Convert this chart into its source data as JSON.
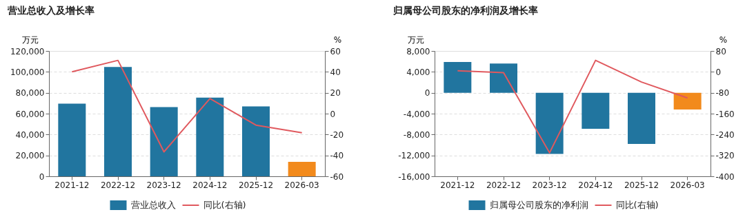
{
  "chart_data": [
    {
      "type": "bar",
      "title": "营业总收入及增长率",
      "ylabel": "万元",
      "y2label": "%",
      "categories": [
        "2021-12",
        "2022-12",
        "2023-12",
        "2024-12",
        "2025-12",
        "2026-03"
      ],
      "series": [
        {
          "name": "营业总收入",
          "type": "bar",
          "color": "#21759f",
          "colors": [
            "#21759f",
            "#21759f",
            "#21759f",
            "#21759f",
            "#21759f",
            "#f28a1c"
          ],
          "values": [
            69500,
            104700,
            66300,
            75400,
            67000,
            13900
          ]
        },
        {
          "name": "同比(右轴)",
          "type": "line",
          "axis": "y2",
          "color": "#e0595e",
          "values": [
            40,
            51,
            -36.6,
            14.4,
            -11,
            -18.3
          ]
        }
      ],
      "ylim": [
        0,
        120000
      ],
      "yticks": [
        0,
        {
          "value": 20000,
          "label": "20,000"
        },
        {
          "value": 40000,
          "label": "40,000"
        },
        {
          "value": 60000,
          "label": "60,000"
        },
        {
          "value": 80000,
          "label": "80,000"
        },
        {
          "value": 100000,
          "label": "100,000"
        },
        {
          "value": 120000,
          "label": "120,000"
        }
      ],
      "y2lim": [
        -60,
        60
      ],
      "y2ticks": [
        -60,
        -40,
        -20,
        0,
        20,
        40,
        60
      ],
      "grid": "y",
      "legend": "bottom"
    },
    {
      "type": "bar",
      "title": "归属母公司股东的净利润及增长率",
      "ylabel": "万元",
      "y2label": "%",
      "categories": [
        "2021-12",
        "2022-12",
        "2023-12",
        "2024-12",
        "2025-12",
        "2026-03"
      ],
      "series": [
        {
          "name": "归属母公司股东的净利润",
          "type": "bar",
          "color": "#21759f",
          "colors": [
            "#21759f",
            "#21759f",
            "#21759f",
            "#21759f",
            "#21759f",
            "#f28a1c"
          ],
          "values": [
            5900,
            5600,
            -11700,
            -6900,
            -9800,
            -3200
          ]
        },
        {
          "name": "同比(右轴)",
          "type": "line",
          "axis": "y2",
          "color": "#e0595e",
          "values": [
            4,
            -3,
            -310,
            44,
            -39,
            -100
          ]
        }
      ],
      "ylim": [
        -16000,
        8000
      ],
      "yticks": [
        {
          "value": -16000,
          "label": "-16,000"
        },
        {
          "value": -12000,
          "label": "-12,000"
        },
        {
          "value": -8000,
          "label": "-8,000"
        },
        {
          "value": -4000,
          "label": "-4,000"
        },
        0,
        {
          "value": 4000,
          "label": "4,000"
        },
        {
          "value": 8000,
          "label": "8,000"
        }
      ],
      "y2lim": [
        -400,
        80
      ],
      "y2ticks": [
        -400,
        -320,
        -240,
        -160,
        -80,
        0,
        80
      ],
      "grid": "y",
      "legend": "bottom"
    }
  ]
}
